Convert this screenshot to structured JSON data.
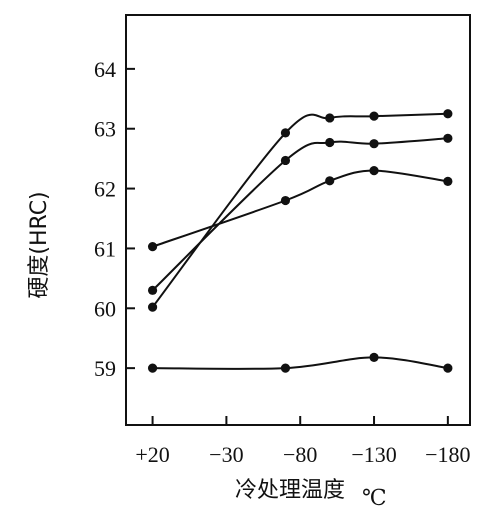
{
  "chart_data": {
    "type": "line",
    "xlabel": "冷处理温度",
    "xlabel_unit": "℃",
    "ylabel": "硬度(HRC)",
    "x_tick_labels": [
      "+20",
      "−30",
      "−80",
      "−130",
      "−180"
    ],
    "x_ticks": [
      20,
      -30,
      -80,
      -130,
      -180
    ],
    "y_ticks": [
      59,
      60,
      61,
      62,
      63,
      64
    ],
    "ylim": [
      58.05,
      64.9
    ],
    "xlim": [
      38,
      -195
    ],
    "grid": false,
    "series": [
      {
        "x": [
          20,
          -70,
          -100,
          -130,
          -180
        ],
        "values": [
          60.02,
          62.93,
          63.18,
          63.21,
          63.25
        ]
      },
      {
        "x": [
          20,
          -70,
          -100,
          -130,
          -180
        ],
        "values": [
          60.3,
          62.47,
          62.77,
          62.75,
          62.84
        ]
      },
      {
        "x": [
          20,
          -70,
          -100,
          -130,
          -180
        ],
        "values": [
          61.03,
          61.8,
          62.13,
          62.3,
          62.12
        ]
      },
      {
        "x": [
          20,
          -70,
          -130,
          -180
        ],
        "values": [
          59.0,
          59.0,
          59.18,
          59.0
        ]
      }
    ]
  }
}
